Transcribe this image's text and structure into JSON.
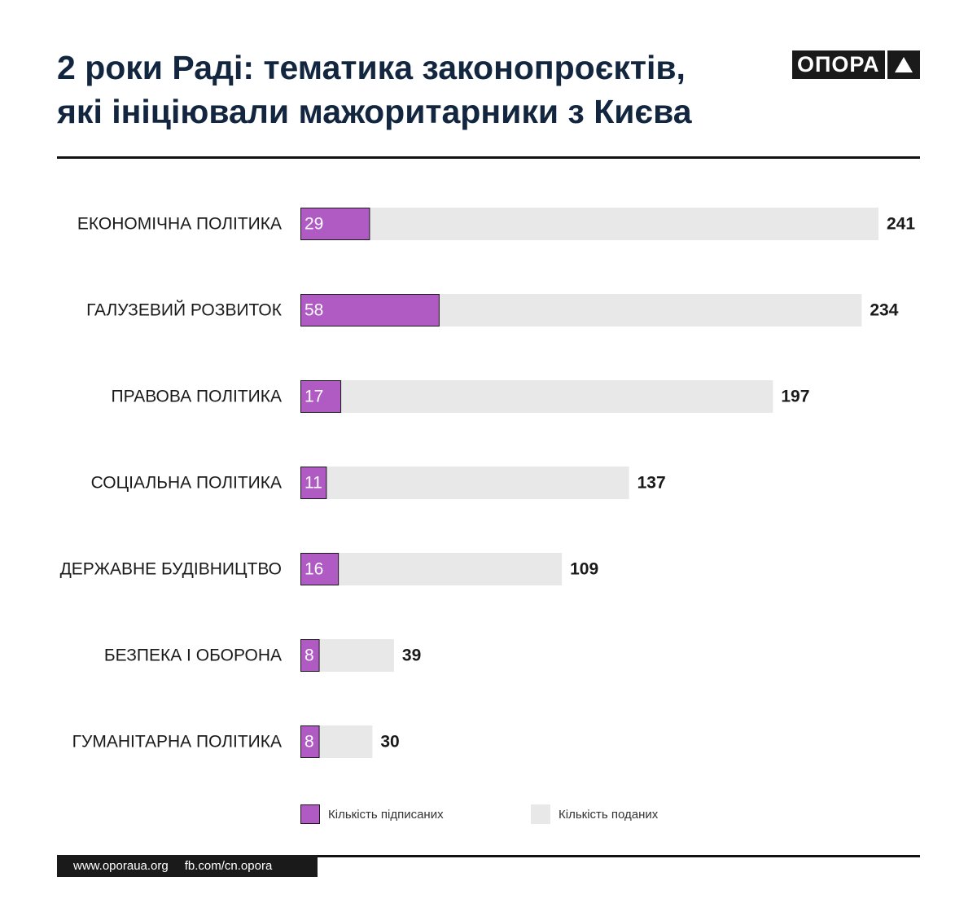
{
  "header": {
    "title_line1": "2 роки Раді: тематика законопроєктів,",
    "title_line2": "які ініціювали мажоритарники з Києва",
    "logo_text": "ОПОРА"
  },
  "chart_data": {
    "type": "bar",
    "orientation": "horizontal",
    "categories": [
      "ЕКОНОМІЧНА ПОЛІТИКА",
      "ГАЛУЗЕВИЙ РОЗВИТОК",
      "ПРАВОВА ПОЛІТИКА",
      "СОЦІАЛЬНА ПОЛІТИКА",
      "ДЕРЖАВНЕ БУДІВНИЦТВО",
      "БЕЗПЕКА І ОБОРОНА",
      "ГУМАНІТАРНА ПОЛІТИКА"
    ],
    "series": [
      {
        "name": "Кількість поданих",
        "color": "#e8e8e8",
        "values": [
          241,
          234,
          197,
          137,
          109,
          39,
          30
        ]
      },
      {
        "name": "Кількість підписаних",
        "color": "#b05bc4",
        "values": [
          29,
          58,
          17,
          11,
          16,
          8,
          8
        ]
      }
    ],
    "xlim": [
      0,
      241
    ],
    "legend": "bottom"
  },
  "legend": {
    "signed_label": "Кількість підписаних",
    "submitted_label": "Кількість поданих"
  },
  "footer": {
    "website": "www.oporaua.org",
    "facebook": "fb.com/cn.opora"
  }
}
